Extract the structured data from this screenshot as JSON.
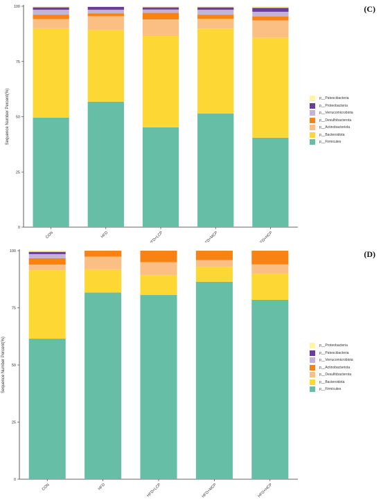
{
  "chart_data": [
    {
      "panel_label": "(C)",
      "type": "bar",
      "stacked": true,
      "ylabel": "Sequence Number Percent(%)",
      "xlabel": "",
      "ylim": [
        0,
        100
      ],
      "yticks": [
        0,
        25,
        50,
        75,
        100
      ],
      "categories": [
        "CON",
        "HFD",
        "HFD+LCP",
        "HFD+MCP",
        "HFD+HCP"
      ],
      "series": [
        {
          "name": "p__Firmicutes",
          "color": "#66bea7",
          "values": [
            49.6,
            56.8,
            45.2,
            51.4,
            40.5
          ]
        },
        {
          "name": "p__Bacteroidota",
          "color": "#fdd835",
          "values": [
            40.4,
            32.3,
            41.3,
            38.5,
            45.3
          ]
        },
        {
          "name": "p__Actinobacteriota",
          "color": "#fbbf84",
          "values": [
            4.2,
            6.4,
            7.5,
            4.4,
            7.8
          ]
        },
        {
          "name": "p__Desulfobacterota",
          "color": "#f68314",
          "values": [
            2.0,
            1.3,
            3.0,
            1.9,
            1.8
          ]
        },
        {
          "name": "p__Verrucomicrobiota",
          "color": "#c5b3d6",
          "values": [
            2.2,
            1.6,
            1.5,
            2.2,
            2.1
          ]
        },
        {
          "name": "p__Proteobacteria",
          "color": "#6a3d9a",
          "values": [
            1.1,
            1.3,
            1.0,
            1.1,
            1.8
          ]
        },
        {
          "name": "p__Patescibacteria",
          "color": "#fff59d",
          "values": [
            0.5,
            0.3,
            0.5,
            0.5,
            0.7
          ]
        }
      ],
      "legend_position": "right"
    },
    {
      "panel_label": "(D)",
      "type": "bar",
      "stacked": true,
      "ylabel": "Sequence Number Percent(%)",
      "xlabel": "",
      "ylim": [
        0,
        100
      ],
      "yticks": [
        0,
        25,
        50,
        75,
        100
      ],
      "categories": [
        "CON",
        "HFD",
        "HFD+LCP",
        "HFD+MCP",
        "HFD+HCP"
      ],
      "series": [
        {
          "name": "p__Firmicutes",
          "color": "#66bea7",
          "values": [
            61.5,
            81.7,
            80.6,
            86.4,
            78.5
          ]
        },
        {
          "name": "p__Bacteroidota",
          "color": "#fdd835",
          "values": [
            30.0,
            10.2,
            8.7,
            6.6,
            11.3
          ]
        },
        {
          "name": "p__Desulfobacterota",
          "color": "#fbbf84",
          "values": [
            2.4,
            5.5,
            5.7,
            2.9,
            4.2
          ]
        },
        {
          "name": "p__Actinobacteriota",
          "color": "#f68314",
          "values": [
            2.8,
            2.6,
            5.0,
            4.1,
            6.0
          ]
        },
        {
          "name": "p__Verrucomicrobiota",
          "color": "#c5b3d6",
          "values": [
            1.8,
            0,
            0,
            0,
            0
          ]
        },
        {
          "name": "p__Patescibacteria",
          "color": "#6a3d9a",
          "values": [
            1.0,
            0,
            0,
            0,
            0
          ]
        },
        {
          "name": "p__Proteobacteria",
          "color": "#fff59d",
          "values": [
            0.5,
            0,
            0,
            0,
            0
          ]
        }
      ],
      "legend_position": "right"
    }
  ]
}
